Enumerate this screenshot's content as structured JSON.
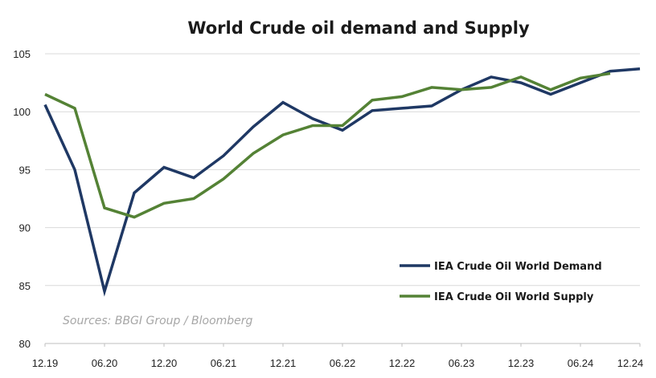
{
  "chart_data": {
    "type": "line",
    "title": "World Crude oil demand and Supply",
    "xlabel": "",
    "ylabel": "",
    "ylim": [
      80,
      105
    ],
    "y_ticks": [
      80,
      85,
      90,
      95,
      100,
      105
    ],
    "x_tick_labels": [
      "12.19",
      "06.20",
      "12.20",
      "06.21",
      "12.21",
      "06.22",
      "12.22",
      "06.23",
      "12.23",
      "06.24",
      "12.24"
    ],
    "x": [
      "12.19",
      "03.20",
      "06.20",
      "09.20",
      "12.20",
      "03.21",
      "06.21",
      "09.21",
      "12.21",
      "03.22",
      "06.22",
      "09.22",
      "12.22",
      "03.23",
      "06.23",
      "09.23",
      "12.23",
      "03.24",
      "06.24",
      "09.24",
      "12.24"
    ],
    "grid": true,
    "legend_position": "bottom-right",
    "series": [
      {
        "name": "IEA Crude Oil World Demand",
        "color": "#1f3864",
        "values": [
          100.6,
          95.0,
          84.5,
          93.0,
          95.2,
          94.3,
          96.2,
          98.7,
          100.8,
          99.4,
          98.4,
          100.1,
          100.3,
          100.5,
          101.9,
          103.0,
          102.5,
          101.5,
          102.5,
          103.5,
          103.7
        ]
      },
      {
        "name": "IEA Crude Oil World Supply",
        "color": "#548235",
        "values": [
          101.5,
          100.3,
          91.7,
          90.9,
          92.1,
          92.5,
          94.2,
          96.4,
          98.0,
          98.8,
          98.8,
          101.0,
          101.3,
          102.1,
          101.9,
          102.1,
          103.0,
          101.9,
          102.9,
          103.3,
          null
        ]
      }
    ],
    "source_note": "Sources: BBGI Group / Bloomberg"
  }
}
